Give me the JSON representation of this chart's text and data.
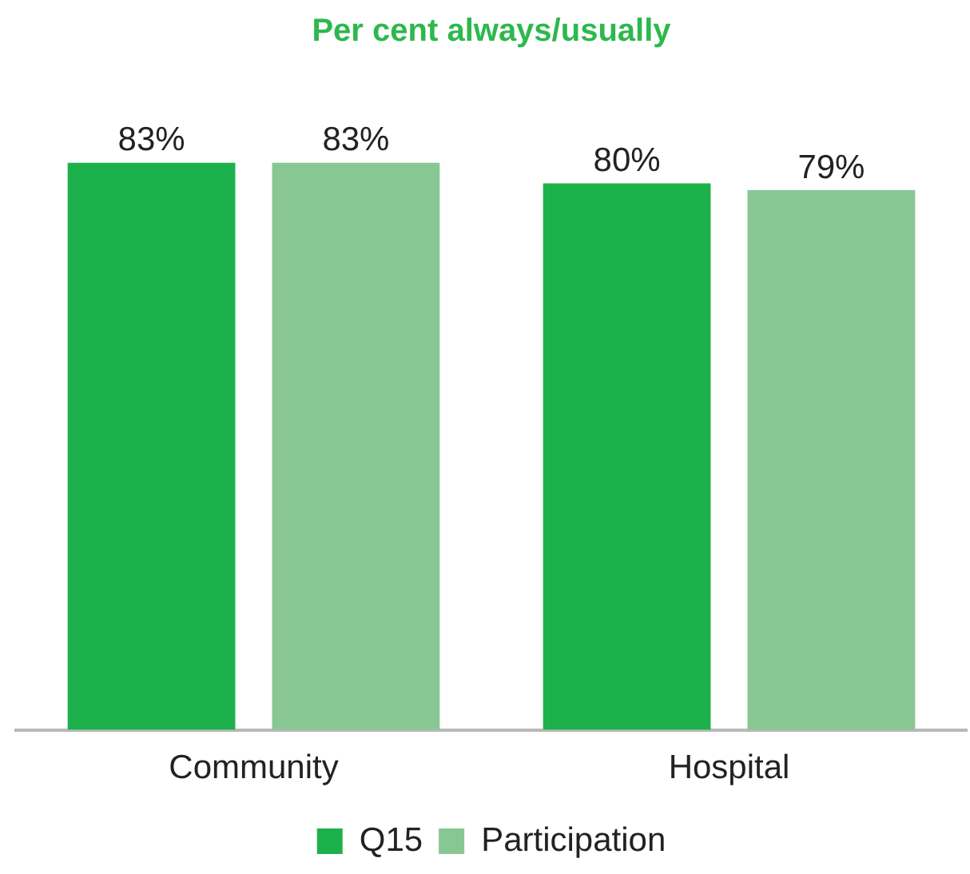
{
  "chart_data": {
    "type": "bar",
    "title": "Per cent always/usually",
    "categories": [
      "Community",
      "Hospital"
    ],
    "series": [
      {
        "name": "Q15",
        "color": "#1db14b",
        "values": [
          83,
          80
        ],
        "value_labels": [
          "83%",
          "80%"
        ]
      },
      {
        "name": "Participation",
        "color": "#88c793",
        "values": [
          83,
          79
        ],
        "value_labels": [
          "83%",
          "79%"
        ]
      }
    ],
    "grid": false,
    "legend": "bottom",
    "tick_labels": "x"
  }
}
